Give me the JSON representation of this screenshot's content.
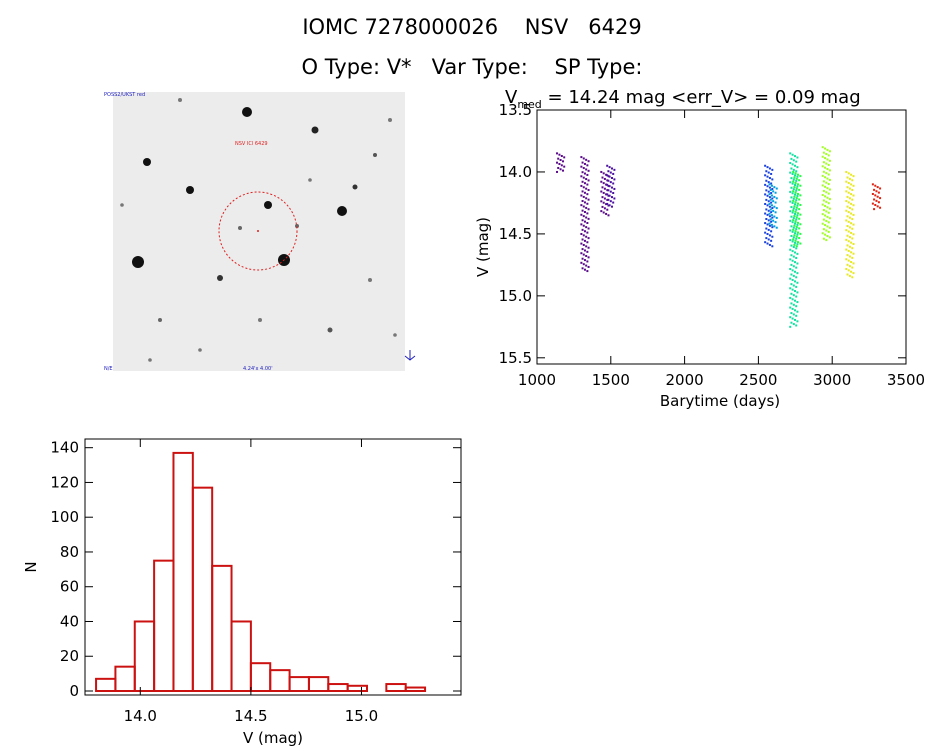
{
  "header": {
    "line1": "IOMC 7278000026    NSV   6429",
    "line2": "O Type: V*   Var Type:    SP Type:"
  },
  "sky_image": {
    "label_top_left": "POSS2/UKST red",
    "label_center": "NSV  ICl 6429",
    "label_bottom_center": "4.24'x 4.00'",
    "label_bottom_left": "N/E"
  },
  "chart_data": [
    {
      "type": "scatter",
      "title_prefix": "V",
      "title_subscript": "med",
      "title_rest": " = 14.24 mag <err_V> = 0.09 mag",
      "xlabel": "Barytime (days)",
      "ylabel": "V (mag)",
      "xlim": [
        1000,
        3500
      ],
      "ylim": [
        15.55,
        13.5
      ],
      "xticks": [
        "1000",
        "1500",
        "2000",
        "2500",
        "3000",
        "3500"
      ],
      "yticks": [
        "13.5",
        "14.0",
        "14.5",
        "15.0",
        "15.5"
      ],
      "groups": [
        {
          "x": 1160,
          "ymin": 13.85,
          "ymax": 14.0,
          "color": "#5a0a8a"
        },
        {
          "x": 1325,
          "ymin": 13.88,
          "ymax": 14.8,
          "color": "#5a0a8a"
        },
        {
          "x": 1460,
          "ymin": 14.0,
          "ymax": 14.35,
          "color": "#5a0a8a"
        },
        {
          "x": 1500,
          "ymin": 13.95,
          "ymax": 14.28,
          "color": "#4a10a0"
        },
        {
          "x": 2570,
          "ymin": 13.95,
          "ymax": 14.6,
          "color": "#1a40e0"
        },
        {
          "x": 2600,
          "ymin": 14.1,
          "ymax": 14.45,
          "color": "#00a0e0"
        },
        {
          "x": 2740,
          "ymin": 13.85,
          "ymax": 15.25,
          "color": "#10e0a0"
        },
        {
          "x": 2760,
          "ymin": 14.0,
          "ymax": 14.6,
          "color": "#20ff40"
        },
        {
          "x": 2960,
          "ymin": 13.8,
          "ymax": 14.55,
          "color": "#a0ff20"
        },
        {
          "x": 3120,
          "ymin": 14.0,
          "ymax": 14.85,
          "color": "#e8e820"
        },
        {
          "x": 3300,
          "ymin": 14.1,
          "ymax": 14.3,
          "color": "#e02010"
        }
      ]
    },
    {
      "type": "bar",
      "xlabel": "V (mag)",
      "ylabel": "N",
      "xlim": [
        13.75,
        15.45
      ],
      "ylim": [
        0,
        145
      ],
      "xticks": [
        "14.0",
        "14.5",
        "15.0"
      ],
      "yticks": [
        "0",
        "20",
        "40",
        "60",
        "80",
        "100",
        "120",
        "140"
      ],
      "bin_start": 13.8,
      "bin_width": 0.0875,
      "values": [
        7,
        14,
        40,
        75,
        137,
        117,
        72,
        40,
        16,
        12,
        8,
        8,
        4,
        3,
        0,
        4,
        2
      ],
      "color": "#cc1111"
    }
  ]
}
